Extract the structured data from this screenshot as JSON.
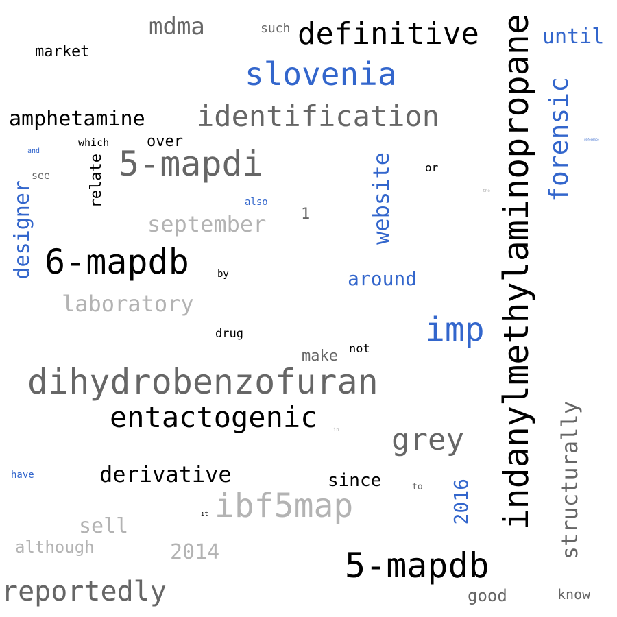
{
  "palette": {
    "black": "#000000",
    "dark_grey": "#666666",
    "light_grey": "#b3b3b3",
    "blue": "#3366cc"
  },
  "words": [
    {
      "text": "indanylmethylaminopropane",
      "color": "black",
      "orientation": "vertical"
    },
    {
      "text": "dihydrobenzofuran",
      "color": "dark_grey",
      "orientation": "horizontal"
    },
    {
      "text": "5-mapdb",
      "color": "black",
      "orientation": "horizontal"
    },
    {
      "text": "6-mapdb",
      "color": "black",
      "orientation": "horizontal"
    },
    {
      "text": "identification",
      "color": "dark_grey",
      "orientation": "horizontal"
    },
    {
      "text": "5-mapdi",
      "color": "dark_grey",
      "orientation": "horizontal"
    },
    {
      "text": "definitive",
      "color": "black",
      "orientation": "horizontal"
    },
    {
      "text": "ibf5map",
      "color": "light_grey",
      "orientation": "horizontal"
    },
    {
      "text": "entactogenic",
      "color": "black",
      "orientation": "horizontal"
    },
    {
      "text": "slovenia",
      "color": "blue",
      "orientation": "horizontal"
    },
    {
      "text": "imp",
      "color": "blue",
      "orientation": "horizontal"
    },
    {
      "text": "forensic",
      "color": "blue",
      "orientation": "vertical"
    },
    {
      "text": "reportedly",
      "color": "dark_grey",
      "orientation": "horizontal"
    },
    {
      "text": "grey",
      "color": "dark_grey",
      "orientation": "horizontal"
    },
    {
      "text": "structurally",
      "color": "dark_grey",
      "orientation": "vertical"
    },
    {
      "text": "website",
      "color": "blue",
      "orientation": "vertical"
    },
    {
      "text": "designer",
      "color": "blue",
      "orientation": "vertical"
    },
    {
      "text": "laboratory",
      "color": "light_grey",
      "orientation": "horizontal"
    },
    {
      "text": "september",
      "color": "light_grey",
      "orientation": "horizontal"
    },
    {
      "text": "derivative",
      "color": "black",
      "orientation": "horizontal"
    },
    {
      "text": "amphetamine",
      "color": "black",
      "orientation": "horizontal"
    },
    {
      "text": "mdma",
      "color": "dark_grey",
      "orientation": "horizontal"
    },
    {
      "text": "until",
      "color": "blue",
      "orientation": "horizontal"
    },
    {
      "text": "around",
      "color": "blue",
      "orientation": "horizontal"
    },
    {
      "text": "2014",
      "color": "light_grey",
      "orientation": "horizontal"
    },
    {
      "text": "2016",
      "color": "blue",
      "orientation": "vertical"
    },
    {
      "text": "sell",
      "color": "light_grey",
      "orientation": "horizontal"
    },
    {
      "text": "since",
      "color": "black",
      "orientation": "horizontal"
    },
    {
      "text": "although",
      "color": "light_grey",
      "orientation": "horizontal"
    },
    {
      "text": "market",
      "color": "black",
      "orientation": "horizontal"
    },
    {
      "text": "over",
      "color": "black",
      "orientation": "horizontal"
    },
    {
      "text": "relate",
      "color": "black",
      "orientation": "vertical"
    },
    {
      "text": "good",
      "color": "dark_grey",
      "orientation": "horizontal"
    },
    {
      "text": "know",
      "color": "dark_grey",
      "orientation": "horizontal"
    },
    {
      "text": "make",
      "color": "dark_grey",
      "orientation": "horizontal"
    },
    {
      "text": "such",
      "color": "dark_grey",
      "orientation": "horizontal"
    },
    {
      "text": "1",
      "color": "dark_grey",
      "orientation": "horizontal"
    },
    {
      "text": "which",
      "color": "black",
      "orientation": "horizontal"
    },
    {
      "text": "not",
      "color": "black",
      "orientation": "horizontal"
    },
    {
      "text": "drug",
      "color": "black",
      "orientation": "horizontal"
    },
    {
      "text": "or",
      "color": "black",
      "orientation": "horizontal"
    },
    {
      "text": "see",
      "color": "dark_grey",
      "orientation": "horizontal"
    },
    {
      "text": "also",
      "color": "blue",
      "orientation": "horizontal"
    },
    {
      "text": "have",
      "color": "blue",
      "orientation": "horizontal"
    },
    {
      "text": "by",
      "color": "black",
      "orientation": "horizontal"
    },
    {
      "text": "to",
      "color": "dark_grey",
      "orientation": "horizontal"
    },
    {
      "text": "and",
      "color": "blue",
      "orientation": "horizontal"
    },
    {
      "text": "it",
      "color": "black",
      "orientation": "horizontal"
    },
    {
      "text": "in",
      "color": "light_grey",
      "orientation": "horizontal"
    },
    {
      "text": "the",
      "color": "light_grey",
      "orientation": "horizontal"
    },
    {
      "text": "reference",
      "color": "blue",
      "orientation": "horizontal"
    }
  ]
}
